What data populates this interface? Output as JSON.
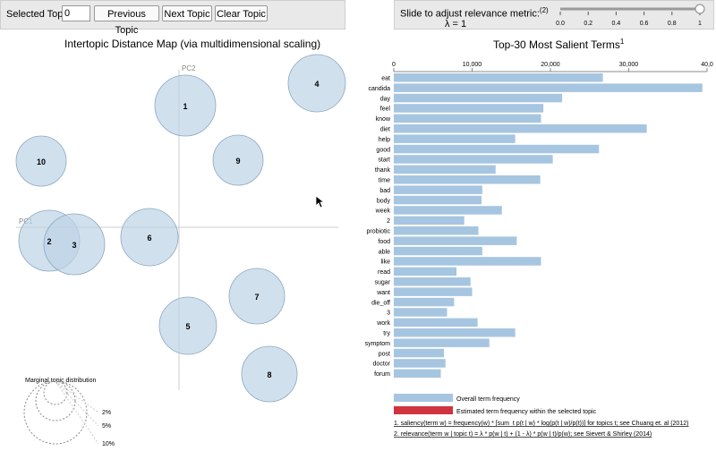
{
  "topbar": {
    "selected_topic_label": "Selected Topic:",
    "selected_topic_value": "0",
    "prev_label": "Previous Topic",
    "next_label": "Next Topic",
    "clear_label": "Clear Topic"
  },
  "lambda": {
    "label": "Slide to adjust relevance metric:",
    "label_sup": "(2)",
    "value_text": "λ = 1",
    "value": 1,
    "ticks": [
      "0.0",
      "0.2",
      "0.4",
      "0.6",
      "0.8",
      "1"
    ]
  },
  "left_title": "Intertopic Distance Map (via multidimensional scaling)",
  "right_title": "Top-30 Most Salient Terms",
  "right_title_sup": "1",
  "axes": {
    "pc1": "PC1",
    "pc2": "PC2"
  },
  "topics": [
    {
      "id": "1"
    },
    {
      "id": "2"
    },
    {
      "id": "3"
    },
    {
      "id": "4"
    },
    {
      "id": "5"
    },
    {
      "id": "6"
    },
    {
      "id": "7"
    },
    {
      "id": "8"
    },
    {
      "id": "9"
    },
    {
      "id": "10"
    }
  ],
  "marginal": {
    "title": "Marginal topic distribution",
    "labels": [
      "2%",
      "5%",
      "10%"
    ]
  },
  "legend": {
    "overall": "Overall term frequency",
    "estimated": "Estimated term frequency within the selected topic"
  },
  "footnotes": {
    "f1": "1. saliency(term w) = frequency(w) * [sum_t p(t | w) * log(p(t | w)/p(t))] for topics t; see Chuang et. al (2012)",
    "f2": "2. relevance(term w | topic t) = λ * p(w | t) + (1 - λ) * p(w | t)/p(w); see Sievert & Shirley (2014)"
  },
  "colors": {
    "bar": "#a6c5e0",
    "circle_fill": "#bdd3e6",
    "circle_stroke": "#8aa8c2",
    "estimated": "#d0343e",
    "panel": "#e9e9e9"
  },
  "chart_data": {
    "type": "bar",
    "orientation": "horizontal",
    "xlim": [
      0,
      40000
    ],
    "ticks": [
      "0",
      "10,000",
      "20,000",
      "30,000",
      "40,0"
    ],
    "categories": [
      "eat",
      "candida",
      "day",
      "feel",
      "know",
      "diet",
      "help",
      "good",
      "start",
      "thank",
      "time",
      "bad",
      "body",
      "week",
      "2",
      "probiotic",
      "food",
      "able",
      "like",
      "read",
      "sugar",
      "want",
      "die_off",
      "3",
      "work",
      "try",
      "symptom",
      "post",
      "doctor",
      "forum"
    ],
    "values": [
      26700,
      39400,
      21500,
      19100,
      18800,
      32300,
      15500,
      26200,
      20300,
      13000,
      18700,
      11300,
      11200,
      13800,
      9000,
      10800,
      15700,
      11300,
      18800,
      8000,
      9800,
      10000,
      7700,
      6800,
      10700,
      15500,
      12200,
      6400,
      6600,
      6000
    ]
  }
}
